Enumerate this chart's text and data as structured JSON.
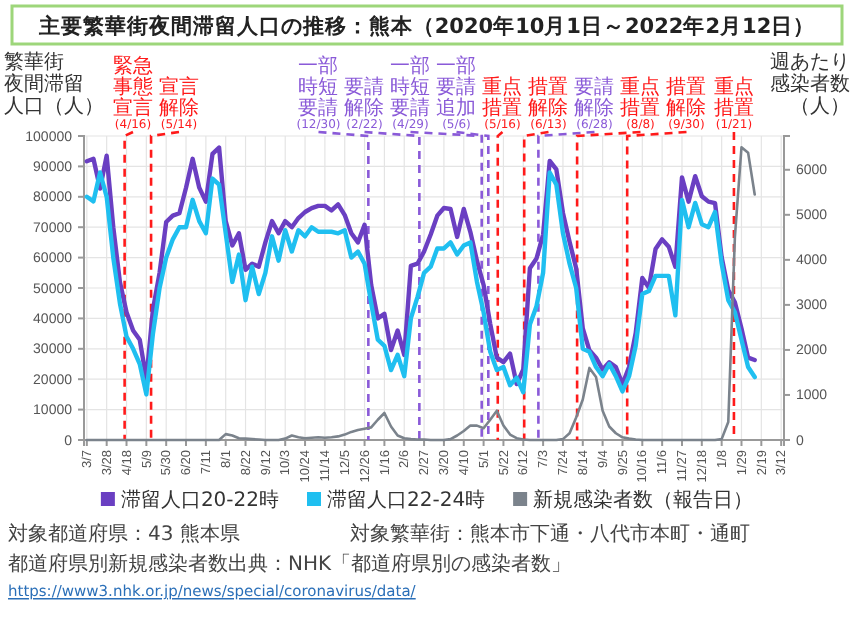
{
  "chart_data": {
    "type": "line",
    "title": "主要繁華街夜間滞留人口の推移：熊本（2020年10月1日～2022年2月12日）",
    "ylabel": "繁華街夜間滞留人口（人）",
    "y2label": "週あたり感染者数（人）",
    "x": [
      "2020-03-07",
      "2020-03-14",
      "2020-03-21",
      "2020-03-28",
      "2020-04-04",
      "2020-04-11",
      "2020-04-18",
      "2020-04-25",
      "2020-05-02",
      "2020-05-09",
      "2020-05-16",
      "2020-05-23",
      "2020-05-30",
      "2020-06-06",
      "2020-06-13",
      "2020-06-20",
      "2020-06-27",
      "2020-07-04",
      "2020-07-11",
      "2020-07-18",
      "2020-07-25",
      "2020-08-01",
      "2020-08-08",
      "2020-08-15",
      "2020-08-22",
      "2020-08-29",
      "2020-09-05",
      "2020-09-12",
      "2020-09-19",
      "2020-09-26",
      "2020-10-03",
      "2020-10-10",
      "2020-10-17",
      "2020-10-24",
      "2020-10-31",
      "2020-11-07",
      "2020-11-14",
      "2020-11-21",
      "2020-11-28",
      "2020-12-05",
      "2020-12-12",
      "2020-12-19",
      "2020-12-26",
      "2021-01-02",
      "2021-01-09",
      "2021-01-16",
      "2021-01-23",
      "2021-01-30",
      "2021-02-06",
      "2021-02-13",
      "2021-02-20",
      "2021-02-27",
      "2021-03-06",
      "2021-03-13",
      "2021-03-20",
      "2021-03-27",
      "2021-04-03",
      "2021-04-10",
      "2021-04-17",
      "2021-04-24",
      "2021-05-01",
      "2021-05-08",
      "2021-05-15",
      "2021-05-22",
      "2021-05-29",
      "2021-06-05",
      "2021-06-12",
      "2021-06-19",
      "2021-06-26",
      "2021-07-03",
      "2021-07-10",
      "2021-07-17",
      "2021-07-24",
      "2021-07-31",
      "2021-08-07",
      "2021-08-14",
      "2021-08-21",
      "2021-08-28",
      "2021-09-04",
      "2021-09-11",
      "2021-09-18",
      "2021-09-25",
      "2021-10-02",
      "2021-10-09",
      "2021-10-16",
      "2021-10-23",
      "2021-10-30",
      "2021-11-06",
      "2021-11-13",
      "2021-11-20",
      "2021-11-27",
      "2021-12-04",
      "2021-12-11",
      "2021-12-18",
      "2021-12-25",
      "2022-01-01",
      "2022-01-08",
      "2022-01-15",
      "2022-01-22",
      "2022-01-29",
      "2022-02-05",
      "2022-02-12"
    ],
    "xlim": [
      "2020-03-04",
      "2022-03-15"
    ],
    "xticks": [
      {
        "value": "2020-03-07",
        "label": "3/7"
      },
      {
        "value": "2020-03-28",
        "label": "3/28"
      },
      {
        "value": "2020-04-18",
        "label": "4/18"
      },
      {
        "value": "2020-05-09",
        "label": "5/9"
      },
      {
        "value": "2020-05-30",
        "label": "5/30"
      },
      {
        "value": "2020-06-20",
        "label": "6/20"
      },
      {
        "value": "2020-07-11",
        "label": "7/11"
      },
      {
        "value": "2020-08-01",
        "label": "8/1"
      },
      {
        "value": "2020-08-22",
        "label": "8/22"
      },
      {
        "value": "2020-09-12",
        "label": "9/12"
      },
      {
        "value": "2020-10-03",
        "label": "10/3"
      },
      {
        "value": "2020-10-24",
        "label": "10/24"
      },
      {
        "value": "2020-11-14",
        "label": "11/14"
      },
      {
        "value": "2020-12-05",
        "label": "12/5"
      },
      {
        "value": "2020-12-26",
        "label": "12/26"
      },
      {
        "value": "2021-01-16",
        "label": "1/16"
      },
      {
        "value": "2021-02-06",
        "label": "2/6"
      },
      {
        "value": "2021-02-27",
        "label": "2/27"
      },
      {
        "value": "2021-03-20",
        "label": "3/20"
      },
      {
        "value": "2021-04-10",
        "label": "4/10"
      },
      {
        "value": "2021-05-01",
        "label": "5/1"
      },
      {
        "value": "2021-05-22",
        "label": "5/22"
      },
      {
        "value": "2021-06-12",
        "label": "6/12"
      },
      {
        "value": "2021-07-03",
        "label": "7/3"
      },
      {
        "value": "2021-07-24",
        "label": "7/24"
      },
      {
        "value": "2021-08-14",
        "label": "8/14"
      },
      {
        "value": "2021-09-04",
        "label": "9/4"
      },
      {
        "value": "2021-09-25",
        "label": "9/25"
      },
      {
        "value": "2021-10-16",
        "label": "10/16"
      },
      {
        "value": "2021-11-06",
        "label": "11/6"
      },
      {
        "value": "2021-11-27",
        "label": "11/27"
      },
      {
        "value": "2021-12-18",
        "label": "12/18"
      },
      {
        "value": "2022-01-08",
        "label": "1/8"
      },
      {
        "value": "2022-01-29",
        "label": "1/29"
      },
      {
        "value": "2022-02-19",
        "label": "2/19"
      },
      {
        "value": "2022-03-12",
        "label": "3/12"
      }
    ],
    "ylim": [
      0,
      100000
    ],
    "yticks": [
      0,
      10000,
      20000,
      30000,
      40000,
      50000,
      60000,
      70000,
      80000,
      90000,
      100000
    ],
    "y2lim": [
      0,
      6750
    ],
    "y2ticks": [
      0,
      1000,
      2000,
      3000,
      4000,
      5000,
      6000
    ],
    "grid": true,
    "legend": "bottom",
    "series": [
      {
        "name": "滞留人口20-22時",
        "color": "#6a3fc2",
        "values": [
          91700,
          92500,
          82700,
          93500,
          70000,
          52000,
          42000,
          36000,
          33000,
          20000,
          43000,
          55000,
          71700,
          73800,
          74600,
          83000,
          92500,
          83000,
          78400,
          94100,
          96200,
          72000,
          64000,
          68000,
          56000,
          58000,
          57000,
          65000,
          72000,
          68000,
          72000,
          70000,
          73000,
          75000,
          76300,
          77000,
          77000,
          75500,
          77500,
          74000,
          68000,
          65000,
          70800,
          51000,
          40000,
          41500,
          29600,
          36000,
          28000,
          57300,
          58000,
          62000,
          67600,
          73800,
          76300,
          76000,
          66800,
          76000,
          68400,
          58900,
          51000,
          38200,
          27100,
          25600,
          28400,
          18400,
          23200,
          56500,
          59700,
          67600,
          91800,
          89000,
          74700,
          65200,
          56500,
          36700,
          29500,
          27100,
          23200,
          25600,
          24000,
          18400,
          24000,
          35100,
          53300,
          50100,
          62800,
          66000,
          63600,
          57000,
          86400,
          78400,
          86800,
          80200,
          78400,
          77900,
          60100,
          49300,
          45300,
          36700,
          27100,
          26300
        ]
      },
      {
        "name": "滞留人口22-24時",
        "color": "#1fbff0",
        "values": [
          80000,
          78500,
          88000,
          80000,
          60000,
          45000,
          34000,
          30000,
          25000,
          15000,
          35000,
          50000,
          60000,
          66000,
          70000,
          70000,
          79000,
          72000,
          68000,
          86000,
          84000,
          68000,
          52000,
          61000,
          46000,
          57000,
          48000,
          55000,
          67000,
          59000,
          69000,
          62000,
          69000,
          67000,
          70000,
          68500,
          68500,
          68500,
          68000,
          69000,
          60000,
          62000,
          58000,
          45000,
          33000,
          31000,
          23000,
          28000,
          21000,
          40000,
          47000,
          55000,
          57000,
          63000,
          63000,
          65000,
          61000,
          64000,
          65000,
          52000,
          42000,
          29000,
          23000,
          24000,
          18000,
          20500,
          15700,
          38000,
          44000,
          55000,
          88000,
          84000,
          68000,
          58000,
          50000,
          30000,
          29000,
          24000,
          21000,
          25000,
          21000,
          16000,
          21000,
          31000,
          48000,
          49000,
          54000,
          54000,
          54000,
          41000,
          79000,
          70000,
          78000,
          71000,
          70000,
          75000,
          58000,
          46000,
          42000,
          33000,
          24000,
          20700
        ]
      },
      {
        "name": "新規感染者数（報告日）",
        "color": "#7b838c",
        "axis": "y2",
        "values": [
          0,
          0,
          0,
          0,
          0,
          0,
          0,
          0,
          0,
          0,
          0,
          0,
          0,
          0,
          0,
          0,
          0,
          0,
          0,
          0,
          0,
          130,
          100,
          40,
          30,
          20,
          10,
          0,
          0,
          0,
          30,
          100,
          60,
          40,
          50,
          60,
          50,
          60,
          80,
          120,
          180,
          220,
          250,
          280,
          450,
          600,
          300,
          100,
          40,
          20,
          10,
          10,
          0,
          0,
          0,
          20,
          100,
          200,
          320,
          320,
          260,
          450,
          650,
          320,
          120,
          40,
          10,
          0,
          0,
          0,
          0,
          0,
          20,
          150,
          500,
          900,
          1600,
          1400,
          650,
          300,
          150,
          60,
          30,
          10,
          0,
          0,
          0,
          0,
          0,
          0,
          0,
          0,
          0,
          0,
          0,
          0,
          20,
          400,
          4500,
          6500,
          6380,
          5450
        ]
      }
    ],
    "ref_lines": [
      {
        "axis": "x",
        "value": "2020-04-16",
        "label": "緊急事態宣言(4/16)",
        "color": "#ff1a1a",
        "line_style": "dashed"
      },
      {
        "axis": "x",
        "value": "2020-05-14",
        "label": "宣言解除(5/14)",
        "color": "#ff1a1a",
        "line_style": "dashed"
      },
      {
        "axis": "x",
        "value": "2020-12-30",
        "label": "一部時短要請(12/30)",
        "color": "#8a5ad8",
        "line_style": "dashed"
      },
      {
        "axis": "x",
        "value": "2021-02-22",
        "label": "要請解除(2/22)",
        "color": "#8a5ad8",
        "line_style": "dashed"
      },
      {
        "axis": "x",
        "value": "2021-04-29",
        "label": "一部時短要請(4/29)",
        "color": "#8a5ad8",
        "line_style": "dashed"
      },
      {
        "axis": "x",
        "value": "2021-05-06",
        "label": "一部要請追加(5/6)",
        "color": "#8a5ad8",
        "line_style": "dashed"
      },
      {
        "axis": "x",
        "value": "2021-05-16",
        "label": "重点措置(5/16)",
        "color": "#ff1a1a",
        "line_style": "dashed"
      },
      {
        "axis": "x",
        "value": "2021-06-13",
        "label": "措置解除(6/13)",
        "color": "#ff1a1a",
        "line_style": "dashed"
      },
      {
        "axis": "x",
        "value": "2021-06-28",
        "label": "要請解除(6/28)",
        "color": "#8a5ad8",
        "line_style": "dashed"
      },
      {
        "axis": "x",
        "value": "2021-08-08",
        "label": "重点措置(8/8)",
        "color": "#ff1a1a",
        "line_style": "dashed"
      },
      {
        "axis": "x",
        "value": "2021-09-30",
        "label": "措置解除(9/30)",
        "color": "#ff1a1a",
        "line_style": "dashed"
      },
      {
        "axis": "x",
        "value": "2022-01-21",
        "label": "重点措置(1/21)",
        "color": "#ff1a1a",
        "line_style": "dashed"
      }
    ],
    "annotations": [
      "対象都道府県：43 熊本県",
      "対象繁華街：熊本市下通・八代市本町・通町",
      "都道府県別新規感染者数出典：NHK「都道府県別の感染者数」",
      "https://www3.nhk.or.jp/news/special/coronavirus/data/"
    ]
  }
}
